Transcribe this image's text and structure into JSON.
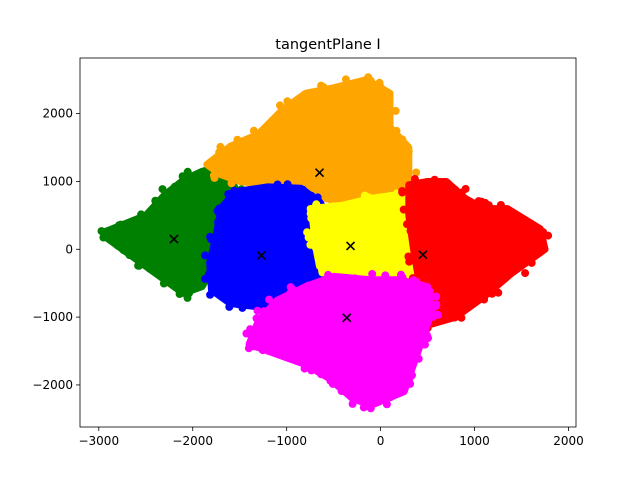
{
  "chart_data": {
    "type": "scatter",
    "title": "tangentPlane I",
    "xlabel": "",
    "ylabel": "",
    "xlim": [
      -3200,
      2080
    ],
    "ylim": [
      -2620,
      2820
    ],
    "xticks": [
      -3000,
      -2000,
      -1000,
      0,
      1000,
      2000
    ],
    "yticks": [
      -2000,
      -1000,
      0,
      1000,
      2000
    ],
    "grid": false,
    "legend": false,
    "clusters": [
      {
        "color": "#008000",
        "center": [
          -2200,
          150
        ],
        "outline": [
          [
            -2950,
            250
          ],
          [
            -2500,
            500
          ],
          [
            -2300,
            800
          ],
          [
            -2100,
            1020
          ],
          [
            -1900,
            1150
          ],
          [
            -1650,
            1250
          ],
          [
            -1550,
            900
          ],
          [
            -1650,
            600
          ],
          [
            -1750,
            300
          ],
          [
            -1800,
            0
          ],
          [
            -1800,
            -300
          ],
          [
            -1900,
            -550
          ],
          [
            -2100,
            -650
          ],
          [
            -2300,
            -450
          ],
          [
            -2600,
            -150
          ],
          [
            -2900,
            150
          ]
        ]
      },
      {
        "color": "#ffa500",
        "center": [
          -650,
          1130
        ],
        "outline": [
          [
            -1850,
            1250
          ],
          [
            -1600,
            1520
          ],
          [
            -1300,
            1700
          ],
          [
            -1050,
            2050
          ],
          [
            -800,
            2300
          ],
          [
            -500,
            2380
          ],
          [
            -150,
            2500
          ],
          [
            100,
            2300
          ],
          [
            100,
            1800
          ],
          [
            300,
            1500
          ],
          [
            300,
            1000
          ],
          [
            200,
            850
          ],
          [
            0,
            700
          ],
          [
            -400,
            700
          ],
          [
            -800,
            800
          ],
          [
            -1200,
            950
          ],
          [
            -1500,
            1000
          ],
          [
            -1700,
            1100
          ]
        ]
      },
      {
        "color": "#0000ff",
        "center": [
          -1270,
          -90
        ],
        "outline": [
          [
            -1550,
            850
          ],
          [
            -1200,
            920
          ],
          [
            -850,
            900
          ],
          [
            -650,
            700
          ],
          [
            -500,
            400
          ],
          [
            -450,
            0
          ],
          [
            -500,
            -400
          ],
          [
            -750,
            -650
          ],
          [
            -1000,
            -750
          ],
          [
            -1300,
            -850
          ],
          [
            -1600,
            -800
          ],
          [
            -1800,
            -600
          ],
          [
            -1820,
            -200
          ],
          [
            -1750,
            200
          ],
          [
            -1700,
            600
          ]
        ]
      },
      {
        "color": "#ffff00",
        "center": [
          -320,
          50
        ],
        "outline": [
          [
            -750,
            600
          ],
          [
            -400,
            650
          ],
          [
            -100,
            750
          ],
          [
            150,
            800
          ],
          [
            300,
            700
          ],
          [
            350,
            500
          ],
          [
            400,
            250
          ],
          [
            420,
            -100
          ],
          [
            400,
            -400
          ],
          [
            350,
            -550
          ],
          [
            0,
            -450
          ],
          [
            -400,
            -350
          ],
          [
            -650,
            -250
          ],
          [
            -700,
            100
          ],
          [
            -720,
            400
          ]
        ]
      },
      {
        "color": "#ff0000",
        "center": [
          450,
          -80
        ],
        "outline": [
          [
            300,
            950
          ],
          [
            500,
            1000
          ],
          [
            700,
            1000
          ],
          [
            900,
            750
          ],
          [
            1100,
            600
          ],
          [
            1350,
            600
          ],
          [
            1700,
            300
          ],
          [
            1750,
            0
          ],
          [
            1400,
            -350
          ],
          [
            1100,
            -700
          ],
          [
            800,
            -1000
          ],
          [
            550,
            -1100
          ],
          [
            420,
            -800
          ],
          [
            400,
            -400
          ],
          [
            350,
            0
          ],
          [
            300,
            500
          ]
        ]
      },
      {
        "color": "#ff00ff",
        "center": [
          -360,
          -1010
        ],
        "outline": [
          [
            -1300,
            -1050
          ],
          [
            -1100,
            -750
          ],
          [
            -800,
            -550
          ],
          [
            -500,
            -400
          ],
          [
            -100,
            -450
          ],
          [
            200,
            -450
          ],
          [
            500,
            -550
          ],
          [
            550,
            -900
          ],
          [
            450,
            -1300
          ],
          [
            350,
            -1700
          ],
          [
            250,
            -2100
          ],
          [
            -100,
            -2300
          ],
          [
            -300,
            -2200
          ],
          [
            -550,
            -1900
          ],
          [
            -800,
            -1700
          ],
          [
            -1100,
            -1550
          ],
          [
            -1400,
            -1400
          ]
        ]
      }
    ]
  }
}
